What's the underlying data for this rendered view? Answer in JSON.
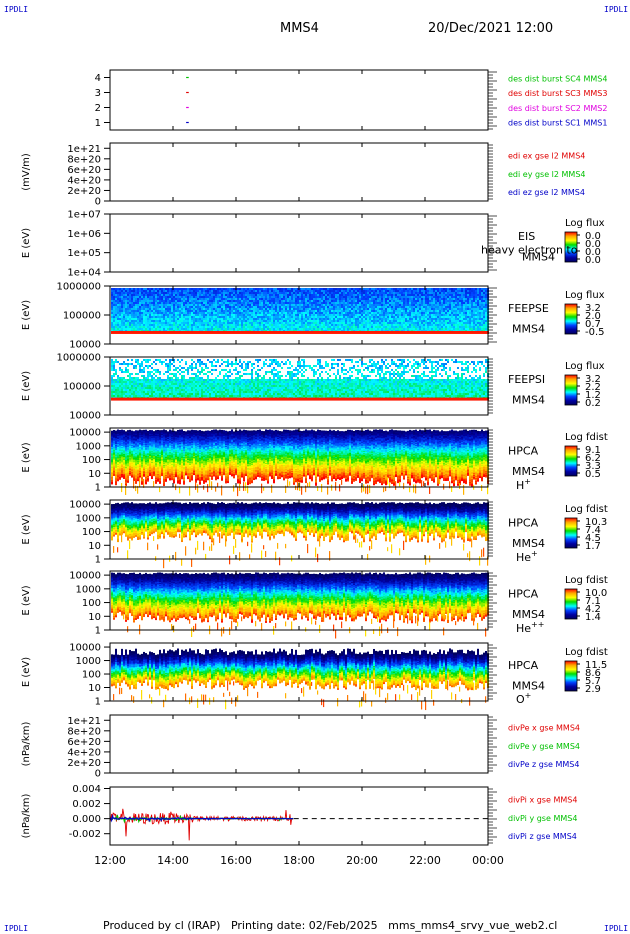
{
  "header": {
    "spacecraft": "MMS4",
    "datetime": "20/Dec/2021 12:00",
    "corner_label": "IPDLI"
  },
  "footer": {
    "text": "Produced by cl (IRAP)   Printing date: 02/Feb/2025   mms_mms4_srvy_vue_web2.cl"
  },
  "colors": {
    "red": "#e00000",
    "green": "#00c000",
    "blue": "#0000c8",
    "magenta": "#e000e0",
    "colorbar_stops": [
      "#ff0000",
      "#ffaa00",
      "#ffff00",
      "#00dd00",
      "#00ffff",
      "#0040ff",
      "#0000a0",
      "#000060"
    ]
  },
  "chart_data": [
    {
      "type": "line",
      "id": "availability",
      "yticks": [
        "1",
        "2",
        "3",
        "4"
      ],
      "ylim": [
        0.5,
        4.5
      ],
      "series": [
        {
          "name": "des dist burst SC1 MMS1",
          "color": "#0000c8",
          "y": 1,
          "x": [
            "14:25",
            "14:30"
          ]
        },
        {
          "name": "des dist burst SC2 MMS2",
          "color": "#e000e0",
          "y": 2,
          "x": [
            "14:25",
            "14:30"
          ]
        },
        {
          "name": "des dist burst SC3 MMS3",
          "color": "#e00000",
          "y": 3,
          "x": [
            "14:25",
            "14:30"
          ]
        },
        {
          "name": "des dist burst SC4 MMS4",
          "color": "#00c000",
          "y": 4,
          "x": [
            "14:25",
            "14:30"
          ]
        }
      ]
    },
    {
      "type": "line",
      "id": "efield",
      "ylabel": "(mV/m)",
      "yticks": [
        "0",
        "2e+20",
        "4e+20",
        "6e+20",
        "8e+20",
        "1e+21"
      ],
      "ylim": [
        0,
        1.1e+21
      ],
      "zero_line": true,
      "series": [
        {
          "name": "edi ex gse l2 MMS4",
          "color": "#e00000"
        },
        {
          "name": "edi ey gse l2 MMS4",
          "color": "#00c000"
        },
        {
          "name": "edi ez gse l2 MMS4",
          "color": "#0000c8"
        }
      ]
    },
    {
      "type": "heatmap",
      "id": "eis",
      "ylabel": "E (eV)",
      "yticks": [
        "1e+04",
        "1e+05",
        "1e+06",
        "1e+07"
      ],
      "ylim_log": [
        4,
        7
      ],
      "labels": [
        "EIS",
        "MMS4"
      ],
      "overlay_text": "heavy electron to",
      "colorbar": {
        "title": "Log flux",
        "ticks": [
          "0.0",
          "0.0",
          "0.0",
          "0.0"
        ]
      },
      "data": "none"
    },
    {
      "type": "heatmap",
      "id": "feepse",
      "ylabel": "E (eV)",
      "yticks": [
        "10000",
        "100000",
        "1000000"
      ],
      "ylim_log": [
        4,
        6
      ],
      "labels": [
        "FEEPSE",
        "MMS4"
      ],
      "colorbar": {
        "title": "Log flux",
        "ticks": [
          "3.2",
          "2.0",
          "0.7",
          "-0.5"
        ]
      },
      "coverage": [
        "12:00",
        "00:00"
      ]
    },
    {
      "type": "heatmap",
      "id": "feepsi",
      "ylabel": "E (eV)",
      "yticks": [
        "10000",
        "100000",
        "1000000"
      ],
      "ylim_log": [
        4,
        6
      ],
      "labels": [
        "FEEPSI",
        "MMS4"
      ],
      "colorbar": {
        "title": "Log flux",
        "ticks": [
          "3.2",
          "2.2",
          "1.2",
          "0.2"
        ]
      },
      "coverage": [
        "12:00",
        "00:00"
      ]
    },
    {
      "type": "heatmap",
      "id": "hpca-h",
      "ylabel": "E (eV)",
      "yticks": [
        "1",
        "10",
        "100",
        "1000",
        "10000"
      ],
      "ylim_log": [
        0,
        4.3
      ],
      "labels": [
        "HPCA",
        "MMS4"
      ],
      "species": "H",
      "species_sup": "+",
      "colorbar": {
        "title": "Log fdist",
        "ticks": [
          "9.1",
          "6.2",
          "3.3",
          "0.5"
        ]
      },
      "coverage": [
        "12:00",
        "00:00"
      ]
    },
    {
      "type": "heatmap",
      "id": "hpca-he1",
      "ylabel": "E (eV)",
      "yticks": [
        "1",
        "10",
        "100",
        "1000",
        "10000"
      ],
      "ylim_log": [
        0,
        4.3
      ],
      "labels": [
        "HPCA",
        "MMS4"
      ],
      "species": "He",
      "species_sup": "+",
      "colorbar": {
        "title": "Log fdist",
        "ticks": [
          "10.3",
          "7.4",
          "4.5",
          "1.7"
        ]
      },
      "coverage": [
        "12:00",
        "00:00"
      ]
    },
    {
      "type": "heatmap",
      "id": "hpca-he2",
      "ylabel": "E (eV)",
      "yticks": [
        "1",
        "10",
        "100",
        "1000",
        "10000"
      ],
      "ylim_log": [
        0,
        4.3
      ],
      "labels": [
        "HPCA",
        "MMS4"
      ],
      "species": "He",
      "species_sup": "++",
      "colorbar": {
        "title": "Log fdist",
        "ticks": [
          "10.0",
          "7.1",
          "4.2",
          "1.4"
        ]
      },
      "coverage": [
        "12:00",
        "00:00"
      ]
    },
    {
      "type": "heatmap",
      "id": "hpca-o",
      "ylabel": "E (eV)",
      "yticks": [
        "1",
        "10",
        "100",
        "1000",
        "10000"
      ],
      "ylim_log": [
        0,
        4.3
      ],
      "labels": [
        "HPCA",
        "MMS4"
      ],
      "species": "O",
      "species_sup": "+",
      "colorbar": {
        "title": "Log fdist",
        "ticks": [
          "11.5",
          "8.6",
          "5.7",
          "2.9"
        ]
      },
      "coverage": [
        "12:00",
        "00:00"
      ]
    },
    {
      "type": "line",
      "id": "divpe",
      "ylabel": "(nPa/km)",
      "yticks": [
        "0",
        "2e+20",
        "4e+20",
        "6e+20",
        "8e+20",
        "1e+21"
      ],
      "ylim": [
        0,
        1.1e+21
      ],
      "zero_line": true,
      "series": [
        {
          "name": "divPe x gse MMS4",
          "color": "#e00000"
        },
        {
          "name": "divPe y gse MMS4",
          "color": "#00c000"
        },
        {
          "name": "divPe z gse MMS4",
          "color": "#0000c8"
        }
      ]
    },
    {
      "type": "line",
      "id": "divpi",
      "ylabel": "(nPa/km)",
      "yticks": [
        "-0.002",
        "0.000",
        "0.002",
        "0.004"
      ],
      "ylim": [
        -0.0035,
        0.0042
      ],
      "zero_line": true,
      "data_range": [
        "12:00",
        "17:50"
      ],
      "series": [
        {
          "name": "divPi x gse MMS4",
          "color": "#e00000",
          "amplitude": 0.003
        },
        {
          "name": "divPi y gse MMS4",
          "color": "#00c000",
          "amplitude": 0.0005
        },
        {
          "name": "divPi z gse MMS4",
          "color": "#0000c8",
          "amplitude": 0.0004
        }
      ]
    }
  ],
  "time_axis": {
    "ticks": [
      "12:00",
      "14:00",
      "16:00",
      "18:00",
      "20:00",
      "22:00",
      "00:00"
    ],
    "range_hours": [
      12,
      24
    ]
  }
}
